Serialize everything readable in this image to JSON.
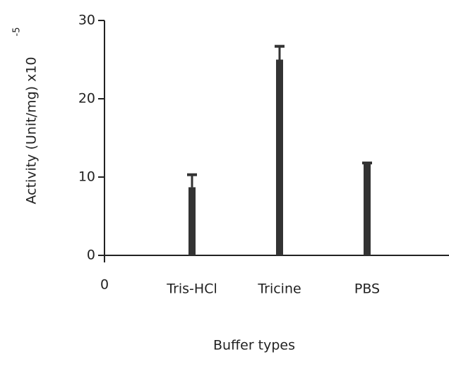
{
  "chart_data": {
    "type": "bar",
    "ylabel": "Activity (Unit/mg) x10",
    "ylabel_superscript": "-5",
    "xlabel": "Buffer types",
    "x_origin_label": "0",
    "categories": [
      "Tris-HCl",
      "Tricine",
      "PBS"
    ],
    "values": [
      8.7,
      25,
      11.7
    ],
    "errors": [
      1.6,
      1.7,
      0.1
    ],
    "color": "#333333",
    "ylim": [
      0,
      30
    ],
    "yticks": [
      0,
      10,
      20,
      30
    ],
    "grid": false
  }
}
